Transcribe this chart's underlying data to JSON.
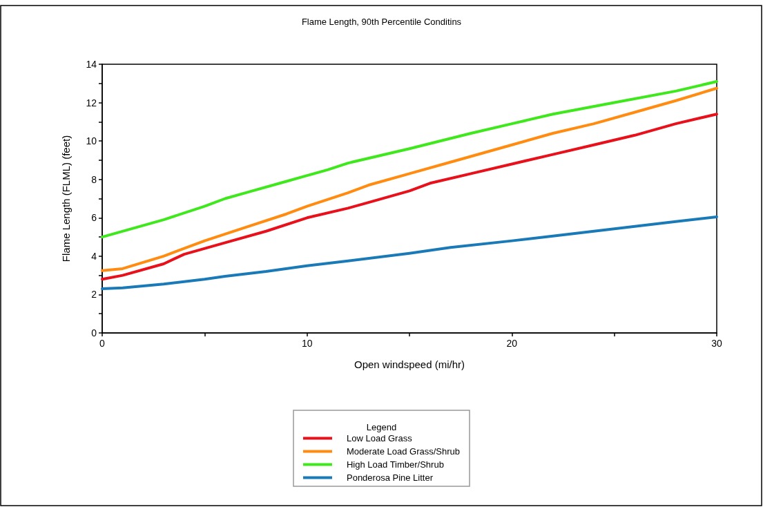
{
  "chart_data": {
    "type": "line",
    "title": "Flame Length, 90th Percentile Conditins",
    "xlabel": "Open windspeed (mi/hr)",
    "ylabel": "Flame Length (FLML) (feet)",
    "legend_title": "Legend",
    "legend": "bottom",
    "grid": false,
    "marker": "none",
    "line_style": "solid",
    "xlim": [
      0,
      30
    ],
    "xticks": [
      0,
      {
        "value": 5,
        "label": null
      },
      10,
      {
        "value": 15,
        "label": null
      },
      20,
      {
        "value": 25,
        "label": null
      },
      30
    ],
    "ylim": [
      0,
      14
    ],
    "yticks": [
      0,
      {
        "value": 1,
        "label": null
      },
      2,
      {
        "value": 3,
        "label": null
      },
      4,
      {
        "value": 5,
        "label": null
      },
      6,
      {
        "value": 7,
        "label": null
      },
      8,
      {
        "value": 9,
        "label": null
      },
      10,
      {
        "value": 11,
        "label": null
      },
      12,
      {
        "value": 13,
        "label": null
      },
      14
    ],
    "series": [
      {
        "name": "Low Load Grass",
        "color": "#e8101a",
        "x": [
          0,
          1,
          3,
          4,
          6,
          8,
          10,
          12,
          13,
          15,
          16,
          18,
          20,
          22,
          24,
          26,
          28,
          30
        ],
        "values": [
          2.8,
          3.0,
          3.6,
          4.1,
          4.7,
          5.3,
          6.0,
          6.5,
          6.8,
          7.4,
          7.8,
          8.3,
          8.8,
          9.3,
          9.8,
          10.3,
          10.9,
          11.4
        ]
      },
      {
        "name": "Moderate Load Grass/Shrub",
        "color": "#ff8c10",
        "x": [
          0,
          1,
          3,
          5,
          7,
          9,
          10,
          12,
          13,
          15,
          17,
          20,
          22,
          24,
          26,
          28,
          30
        ],
        "values": [
          3.25,
          3.35,
          4.0,
          4.8,
          5.5,
          6.2,
          6.6,
          7.3,
          7.7,
          8.3,
          8.9,
          9.8,
          10.4,
          10.9,
          11.5,
          12.1,
          12.75
        ]
      },
      {
        "name": "High Load Timber/Shrub",
        "color": "#3ee81c",
        "x": [
          0,
          3,
          5,
          6,
          7,
          9,
          10,
          11,
          12,
          15,
          18,
          20,
          22,
          25,
          28,
          30
        ],
        "values": [
          5.0,
          5.9,
          6.6,
          7.0,
          7.3,
          7.9,
          8.2,
          8.5,
          8.85,
          9.6,
          10.4,
          10.9,
          11.4,
          12.0,
          12.6,
          13.1
        ]
      },
      {
        "name": "Ponderosa Pine Litter",
        "color": "#1a7ab8",
        "x": [
          0,
          1,
          3,
          5,
          6,
          8,
          10,
          12,
          15,
          17,
          20,
          22,
          24,
          26,
          28,
          30
        ],
        "values": [
          2.3,
          2.35,
          2.55,
          2.8,
          2.95,
          3.2,
          3.5,
          3.75,
          4.15,
          4.45,
          4.8,
          5.05,
          5.3,
          5.55,
          5.8,
          6.05
        ]
      }
    ]
  }
}
